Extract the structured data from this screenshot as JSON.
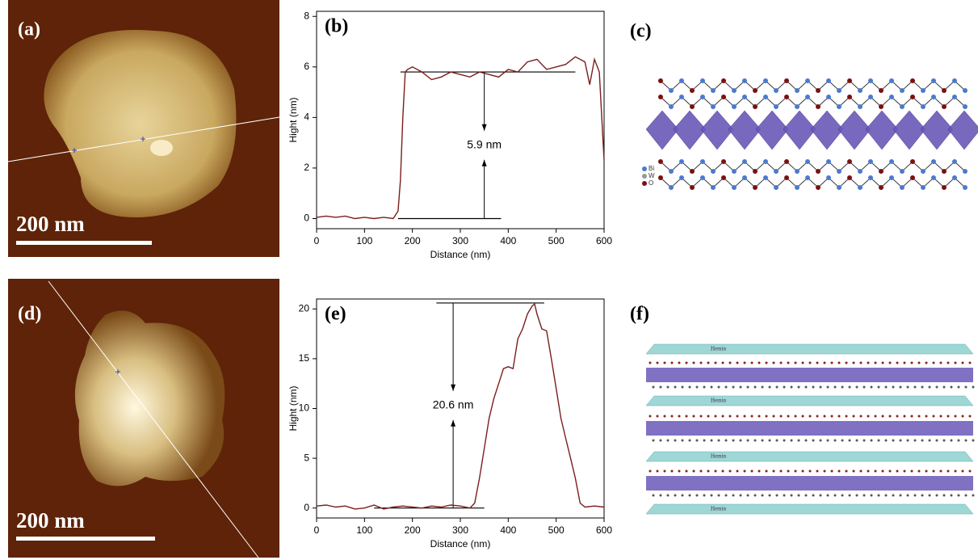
{
  "panels": {
    "a": {
      "label": "(a)",
      "scale_bar": "200 nm"
    },
    "c": {
      "label": "(c)",
      "legend": [
        "Bi",
        "W",
        "O"
      ]
    },
    "d": {
      "label": "(d)",
      "scale_bar": "200 nm"
    },
    "f": {
      "label": "(f)",
      "layer_labels": [
        "Hemin",
        "Hemin",
        "Hemin",
        "Hemin"
      ]
    }
  },
  "chart_data": [
    {
      "type": "line",
      "panel_label": "(b)",
      "x_label": "Distance (nm)",
      "y_label": "Hight (nm)",
      "annotation": "5.9 nm",
      "x": [
        0,
        20,
        40,
        60,
        80,
        100,
        120,
        140,
        160,
        170,
        175,
        180,
        185,
        190,
        200,
        220,
        240,
        260,
        280,
        300,
        320,
        340,
        360,
        380,
        400,
        420,
        440,
        460,
        480,
        500,
        520,
        540,
        560,
        570,
        580,
        590,
        600
      ],
      "series": [
        {
          "color": "#7a1e1e",
          "values": [
            0.05,
            0.1,
            0.05,
            0.1,
            0.0,
            0.05,
            0.0,
            0.05,
            0.0,
            0.3,
            1.5,
            4,
            5.8,
            5.9,
            6.0,
            5.8,
            5.5,
            5.6,
            5.8,
            5.7,
            5.6,
            5.8,
            5.7,
            5.6,
            5.9,
            5.8,
            6.2,
            6.3,
            5.9,
            6.0,
            6.1,
            6.4,
            6.2,
            5.3,
            6.3,
            5.8,
            2.3
          ]
        }
      ],
      "reference_lines": [
        {
          "x": [
            175,
            540
          ],
          "y": 5.8
        },
        {
          "x": [
            170,
            385
          ],
          "y": 0
        }
      ],
      "arrow_x": 350,
      "xlim": [
        0,
        600
      ],
      "ylim": [
        -0.4,
        8.2
      ],
      "xticks": [
        0,
        100,
        200,
        300,
        400,
        500,
        600
      ],
      "yticks": [
        0,
        2,
        4,
        6,
        8
      ]
    },
    {
      "type": "line",
      "panel_label": "(e)",
      "x_label": "Distance (nm)",
      "y_label": "Hight (nm)",
      "annotation": "20.6 nm",
      "x": [
        0,
        20,
        40,
        60,
        80,
        100,
        120,
        140,
        160,
        180,
        200,
        220,
        240,
        260,
        280,
        300,
        320,
        330,
        340,
        350,
        360,
        370,
        380,
        390,
        400,
        410,
        420,
        430,
        440,
        450,
        455,
        460,
        470,
        480,
        490,
        500,
        510,
        520,
        530,
        540,
        550,
        560,
        580,
        600
      ],
      "series": [
        {
          "color": "#7a1e1e",
          "values": [
            0.2,
            0.3,
            0.1,
            0.2,
            -0.1,
            0.0,
            0.3,
            -0.1,
            0.1,
            0.2,
            0.1,
            0.0,
            0.2,
            0.1,
            0.3,
            0.2,
            0.0,
            0.5,
            3,
            6,
            9,
            11,
            12.5,
            14,
            14.2,
            14,
            17,
            18,
            19.5,
            20.3,
            20.5,
            19.5,
            18,
            17.8,
            15,
            12,
            9,
            7,
            5,
            3,
            0.5,
            0.1,
            0.2,
            0.1
          ]
        }
      ],
      "reference_lines": [
        {
          "x": [
            250,
            475
          ],
          "y": 20.6
        },
        {
          "x": [
            120,
            350
          ],
          "y": 0
        }
      ],
      "arrow_x": 285,
      "xlim": [
        0,
        600
      ],
      "ylim": [
        -1,
        21
      ],
      "xticks": [
        0,
        100,
        200,
        300,
        400,
        500,
        600
      ],
      "yticks": [
        0,
        5,
        10,
        15,
        20
      ]
    }
  ]
}
